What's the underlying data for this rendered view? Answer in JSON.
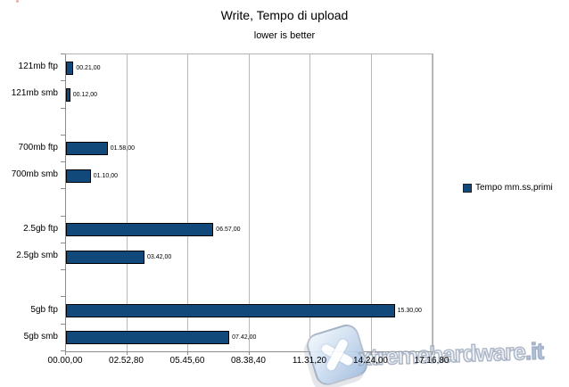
{
  "chart_data": {
    "type": "bar",
    "orientation": "horizontal",
    "title": "Write, Tempo di upload",
    "subtitle": "lower is better",
    "legend": [
      "Tempo mm.ss,primi"
    ],
    "legend_position": "right",
    "grid": "vertical",
    "bar_color": "#11497a",
    "categories": [
      "121mb ftp",
      "121mb smb",
      "700mb ftp",
      "700mb smb",
      "2.5gb ftp",
      "2.5gb smb",
      "5gb ftp",
      "5gb smb"
    ],
    "bars": [
      {
        "category": "121mb ftp",
        "slot": 0,
        "seconds": 21,
        "label": "00.21,00"
      },
      {
        "category": "121mb smb",
        "slot": 1,
        "seconds": 12,
        "label": "00.12,00"
      },
      {
        "category": "700mb ftp",
        "slot": 3,
        "seconds": 118,
        "label": "01.58,00"
      },
      {
        "category": "700mb smb",
        "slot": 4,
        "seconds": 70,
        "label": "01.10,00"
      },
      {
        "category": "2.5gb ftp",
        "slot": 6,
        "seconds": 417,
        "label": "06.57,00"
      },
      {
        "category": "2.5gb smb",
        "slot": 7,
        "seconds": 222,
        "label": "03.42,00"
      },
      {
        "category": "5gb ftp",
        "slot": 9,
        "seconds": 930,
        "label": "15.30,00"
      },
      {
        "category": "5gb smb",
        "slot": 10,
        "seconds": 462,
        "label": "07.42,00"
      }
    ],
    "slots": 11,
    "x_axis": {
      "label_format": "mm.ss,hh",
      "max_seconds": 1036.8,
      "ticks_seconds": [
        0,
        172.8,
        345.6,
        518.4,
        691.2,
        864,
        1036.8
      ],
      "tick_labels": [
        "00.00,00",
        "02.52,80",
        "05.45,60",
        "08.38,40",
        "11.31,20",
        "14.24,00",
        "17.16,80"
      ]
    }
  },
  "watermark": {
    "logo": "x-logo",
    "text": "xtremehardware",
    "suffix": ".it"
  }
}
